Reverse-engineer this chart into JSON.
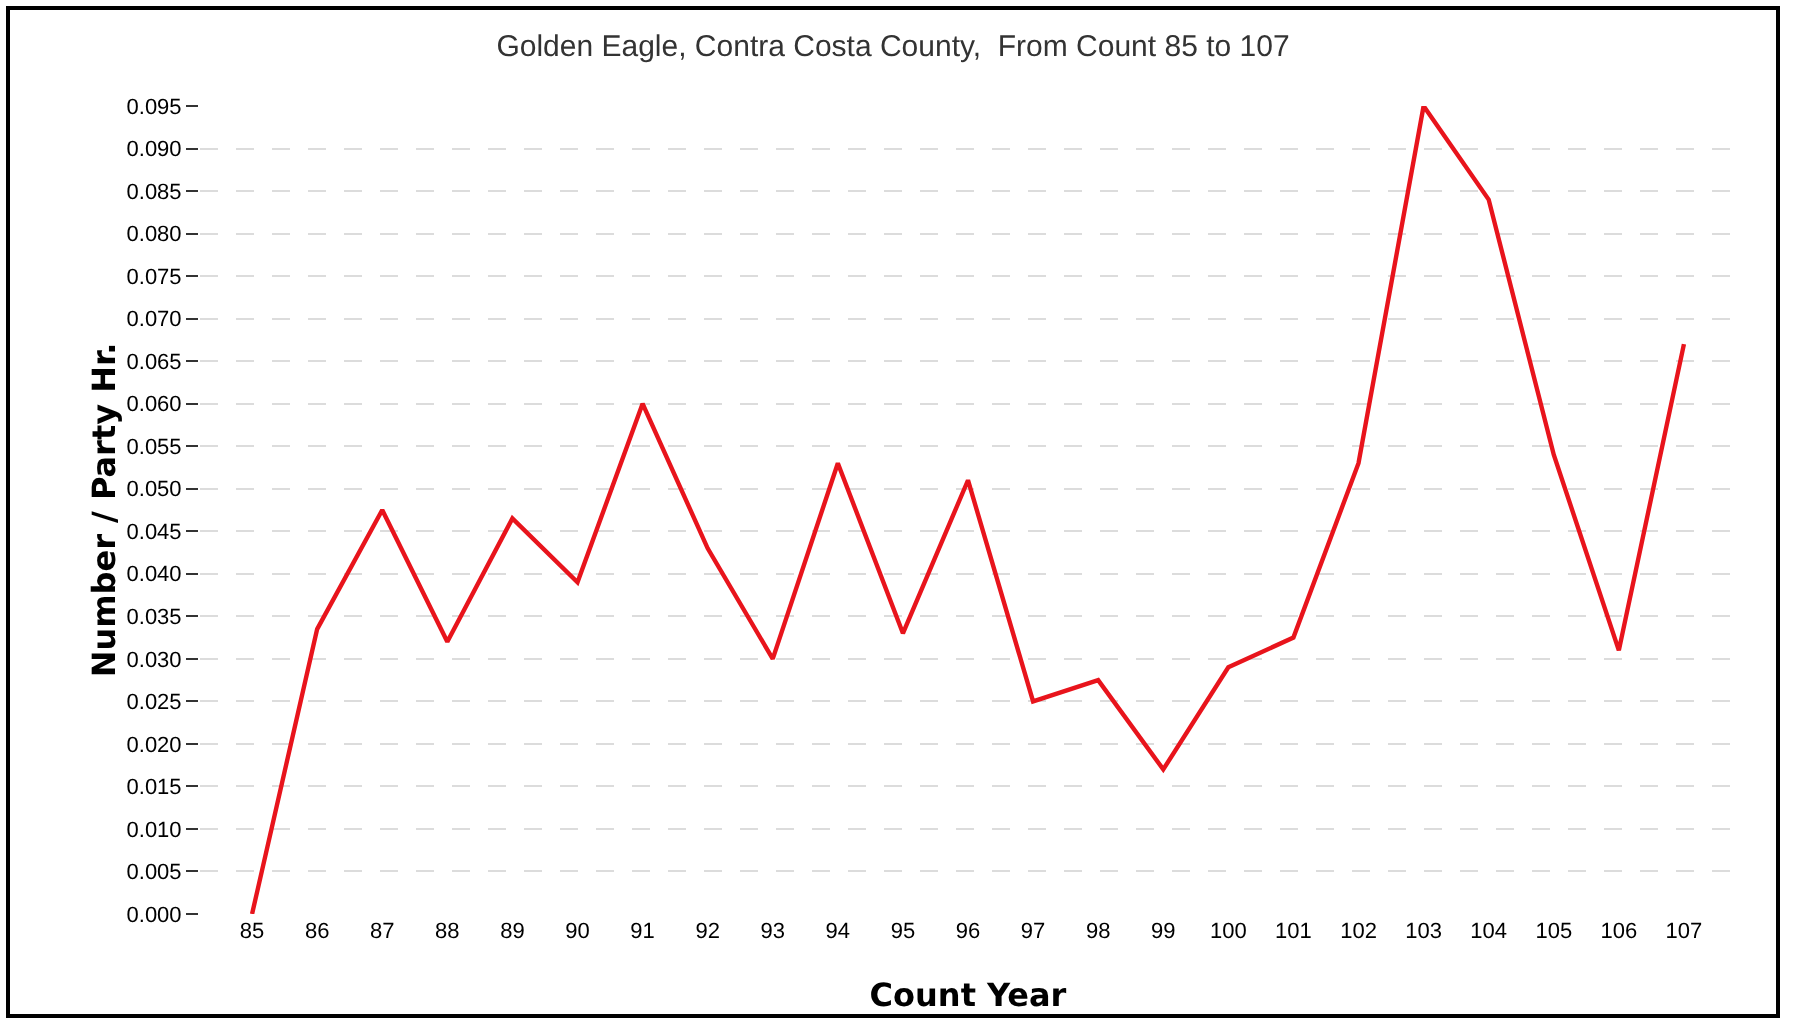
{
  "chart_data": {
    "type": "line",
    "title": "Golden Eagle, Contra Costa County,  From Count 85 to 107",
    "xlabel": "Count Year",
    "ylabel": "Number / Party Hr.",
    "categories": [
      "85",
      "86",
      "87",
      "88",
      "89",
      "90",
      "91",
      "92",
      "93",
      "94",
      "95",
      "96",
      "97",
      "98",
      "99",
      "100",
      "101",
      "102",
      "103",
      "104",
      "105",
      "106",
      "107"
    ],
    "series": [
      {
        "color": "#e8141c",
        "values": [
          0,
          0.0335,
          0.0475,
          0.032,
          0.0465,
          0.039,
          0.06,
          0.043,
          0.03,
          0.053,
          0.033,
          0.051,
          0.025,
          0.0275,
          0.017,
          0.029,
          0.0325,
          0.053,
          0.095,
          0.084,
          0.054,
          0.031,
          0.067
        ]
      }
    ],
    "ylim": [
      0,
      0.095
    ],
    "yticks": [
      {
        "value": 0,
        "label": "0.000"
      },
      {
        "value": 0.005,
        "label": "0.005"
      },
      {
        "value": 0.01,
        "label": "0.010"
      },
      {
        "value": 0.015,
        "label": "0.015"
      },
      {
        "value": 0.02,
        "label": "0.020"
      },
      {
        "value": 0.025,
        "label": "0.025"
      },
      {
        "value": 0.03,
        "label": "0.030"
      },
      {
        "value": 0.035,
        "label": "0.035"
      },
      {
        "value": 0.04,
        "label": "0.040"
      },
      {
        "value": 0.045,
        "label": "0.045"
      },
      {
        "value": 0.05,
        "label": "0.050"
      },
      {
        "value": 0.055,
        "label": "0.055"
      },
      {
        "value": 0.06,
        "label": "0.060"
      },
      {
        "value": 0.065,
        "label": "0.065"
      },
      {
        "value": 0.07,
        "label": "0.070"
      },
      {
        "value": 0.075,
        "label": "0.075"
      },
      {
        "value": 0.08,
        "label": "0.080"
      },
      {
        "value": 0.085,
        "label": "0.085"
      },
      {
        "value": 0.09,
        "label": "0.090"
      },
      {
        "value": 0.095,
        "label": "0.095"
      }
    ],
    "grid": "y",
    "marker": "none",
    "line_style": "solid"
  }
}
